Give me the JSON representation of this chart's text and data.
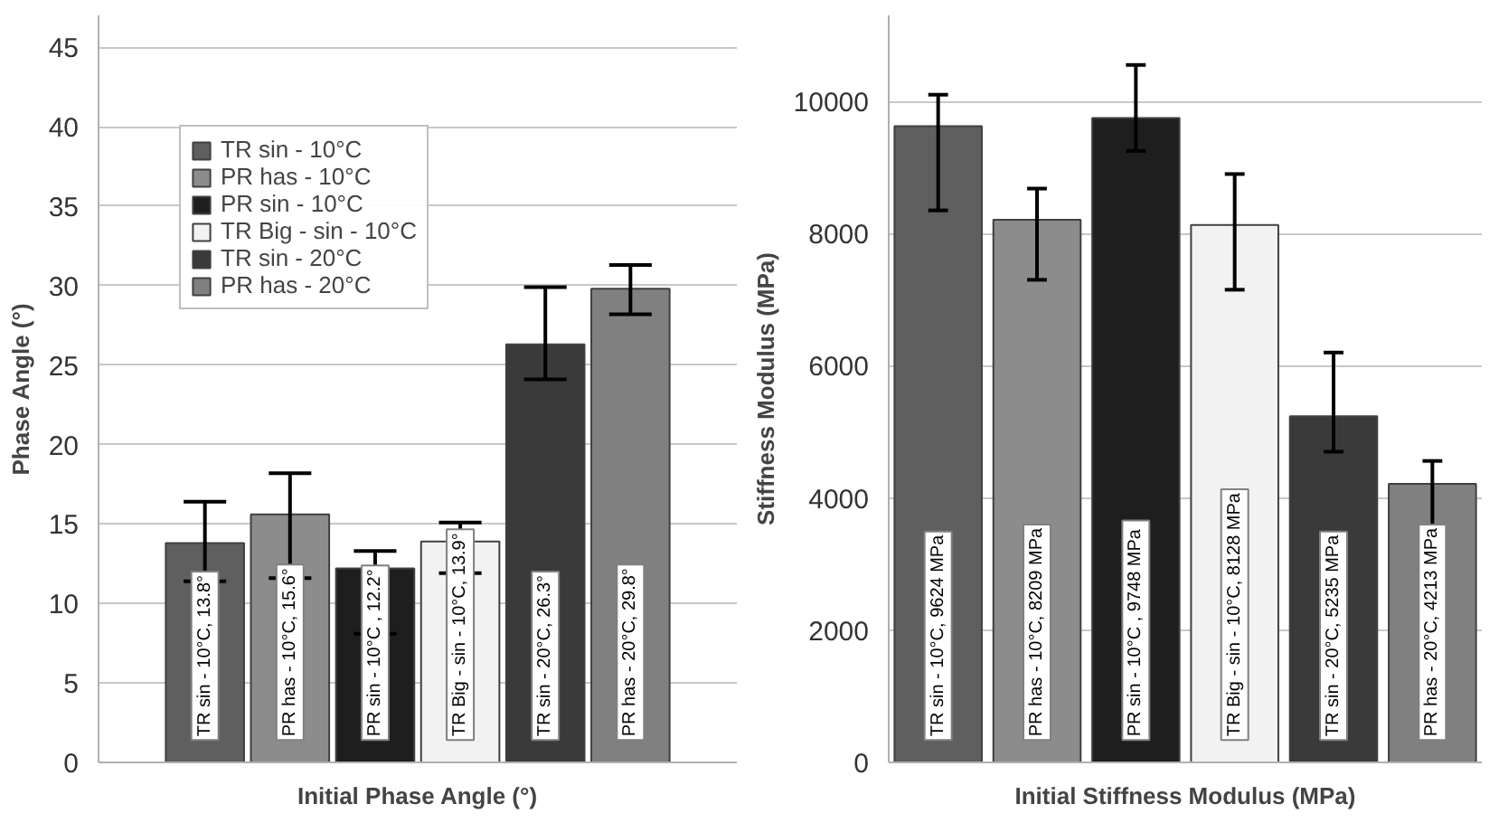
{
  "chart_data": [
    {
      "type": "bar",
      "xlabel": "Initial Phase Angle (°)",
      "ylabel": "Phase Angle (°)",
      "categories": [
        null
      ],
      "ylim": [
        0,
        47
      ],
      "yticks": [
        0,
        5,
        10,
        15,
        20,
        25,
        30,
        35,
        40,
        45
      ],
      "grid": "y",
      "legend": "top left",
      "series": [
        {
          "name": "TR sin - 10°C",
          "color": "#5f5f5f",
          "values": [
            13.8
          ],
          "errors": [
            [
              11.4,
              16.4
            ]
          ],
          "value_labels": [
            "TR sin - 10°C, 13.8°"
          ]
        },
        {
          "name": "PR has - 10°C",
          "color": "#8c8c8c",
          "values": [
            15.6
          ],
          "errors": [
            [
              11.6,
              18.2
            ]
          ],
          "value_labels": [
            "PR has - 10°C, 15.6°"
          ]
        },
        {
          "name": "PR sin - 10°C",
          "color": "#1e1e1e",
          "values": [
            12.2
          ],
          "errors": [
            [
              8.1,
              13.3
            ]
          ],
          "value_labels": [
            "PR sin - 10°C , 12.2°"
          ]
        },
        {
          "name": "TR Big - sin - 10°C",
          "color": "#f2f2f2",
          "values": [
            13.9
          ],
          "errors": [
            [
              11.9,
              15.1
            ]
          ],
          "value_labels": [
            "TR Big - sin - 10°C, 13.9°"
          ]
        },
        {
          "name": "TR sin - 20°C",
          "color": "#3a3a3a",
          "values": [
            26.3
          ],
          "errors": [
            [
              24.1,
              29.9
            ]
          ],
          "value_labels": [
            "TR sin - 20°C, 26.3°"
          ]
        },
        {
          "name": "PR has - 20°C",
          "color": "#808080",
          "values": [
            29.8
          ],
          "errors": [
            [
              28.2,
              31.3
            ]
          ],
          "value_labels": [
            "PR has - 20°C, 29.8°"
          ]
        }
      ]
    },
    {
      "type": "bar",
      "xlabel": "Initial Stiffness Modulus (MPa)",
      "ylabel": "Stiffness Modulus (MPa)",
      "categories": [
        null,
        null,
        null,
        null,
        null,
        null
      ],
      "ylim": [
        0,
        11300
      ],
      "yticks": [
        0,
        2000,
        4000,
        6000,
        8000,
        10000
      ],
      "grid": "y",
      "series": [
        {
          "colors": [
            "#5f5f5f",
            "#8c8c8c",
            "#1e1e1e",
            "#f2f2f2",
            "#3a3a3a",
            "#808080"
          ],
          "values": [
            9624,
            8209,
            9748,
            8128,
            5235,
            4213
          ],
          "errors": [
            [
              8350,
              10100
            ],
            [
              7300,
              8680
            ],
            [
              9250,
              10550
            ],
            [
              7150,
              8900
            ],
            [
              4700,
              6200
            ],
            [
              3560,
              4560
            ]
          ],
          "value_labels": [
            "TR sin - 10°C, 9624 MPa",
            "PR has - 10°C, 8209 MPa",
            "PR sin - 10°C ,  9748 MPa",
            "TR Big - sin - 10°C, 8128 MPa",
            "TR sin - 20°C, 5235 MPa",
            "PR has - 20°C, 4213 MPa"
          ]
        }
      ]
    }
  ]
}
